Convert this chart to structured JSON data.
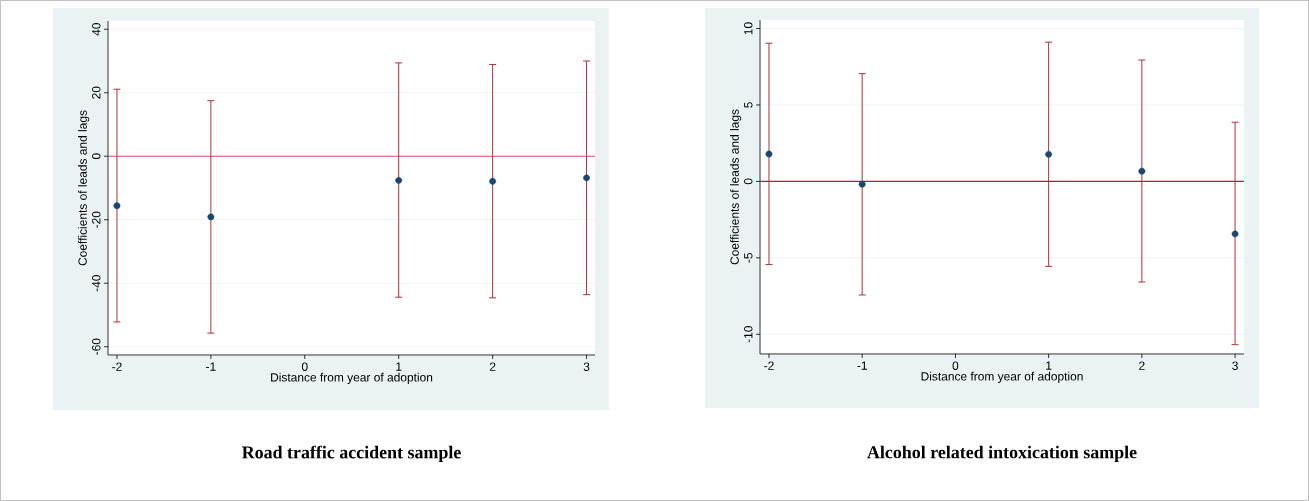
{
  "chart_data": [
    {
      "type": "scatter",
      "title": "Road traffic accident sample",
      "xlabel": "Distance from year of adoption",
      "ylabel": "Coefficients of leads and lags",
      "x": [
        -2,
        -1,
        1,
        2,
        3
      ],
      "series": [
        {
          "color": "#1a476f",
          "values": [
            -15.6,
            -19.1,
            -7.6,
            -7.9,
            -6.8
          ],
          "errors": [
            [
              -52.2,
              21.1
            ],
            [
              -55.7,
              17.5
            ],
            [
              -44.4,
              29.4
            ],
            [
              -44.6,
              28.9
            ],
            [
              -43.6,
              30.0
            ]
          ]
        }
      ],
      "xlim": [
        -2.095,
        3.09
      ],
      "ylim": [
        -62.6,
        42.6
      ],
      "xticks": [
        -2,
        -1,
        0,
        1,
        2,
        3
      ],
      "yticks": [
        -60,
        -40,
        -20,
        0,
        20,
        40
      ],
      "ref_lines": [
        {
          "axis": "y",
          "value": 0,
          "color": "#d0506e"
        }
      ],
      "grid": "y",
      "marker": "circle"
    },
    {
      "type": "scatter",
      "title": "Alcohol related intoxication sample",
      "xlabel": "Distance from year of adoption",
      "ylabel": "Coefficients of leads and lags",
      "x": [
        -2,
        -1,
        1,
        2,
        3
      ],
      "series": [
        {
          "color": "#1a476f",
          "values": [
            1.79,
            -0.18,
            1.77,
            0.67,
            -3.43
          ],
          "errors": [
            [
              -5.44,
              9.04
            ],
            [
              -7.43,
              7.05
            ],
            [
              -5.56,
              9.11
            ],
            [
              -6.58,
              7.94
            ],
            [
              -10.68,
              3.87
            ]
          ]
        }
      ],
      "xlim": [
        -2.096,
        3.096
      ],
      "ylim": [
        -11.29,
        10.56
      ],
      "xticks": [
        -2,
        -1,
        0,
        1,
        2,
        3
      ],
      "yticks": [
        -10,
        -5,
        0,
        5,
        10
      ],
      "ref_lines": [
        {
          "axis": "y",
          "value": 0,
          "color": "#c0143c"
        }
      ],
      "grid": "y",
      "marker": "circle"
    }
  ]
}
